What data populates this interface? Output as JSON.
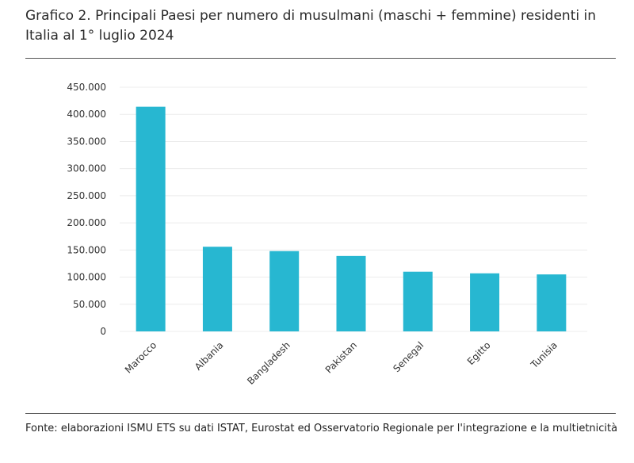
{
  "chart_data": {
    "type": "bar",
    "title": "Grafico 2. Principali Paesi per numero di musulmani (maschi + femmine) residenti in Italia al 1° luglio 2024",
    "categories": [
      "Marocco",
      "Albania",
      "Bangladesh",
      "Pakistan",
      "Senegal",
      "Egitto",
      "Tunisia"
    ],
    "values": [
      414000,
      156000,
      148000,
      139000,
      110000,
      107000,
      105000
    ],
    "ylim": [
      0,
      450000
    ],
    "yticks": [
      0,
      50000,
      100000,
      150000,
      200000,
      250000,
      300000,
      350000,
      400000,
      450000
    ],
    "ytick_labels": [
      "0",
      "50.000",
      "100.000",
      "150.000",
      "200.000",
      "250.000",
      "300.000",
      "350.000",
      "400.000",
      "450.000"
    ],
    "xlabel": "",
    "ylabel": "",
    "grid": true,
    "bar_color": "#27B7D1",
    "source": "Fonte: elaborazioni ISMU ETS su dati ISTAT, Eurostat ed Osservatorio Regionale per l'integrazione e la multietnicità"
  }
}
